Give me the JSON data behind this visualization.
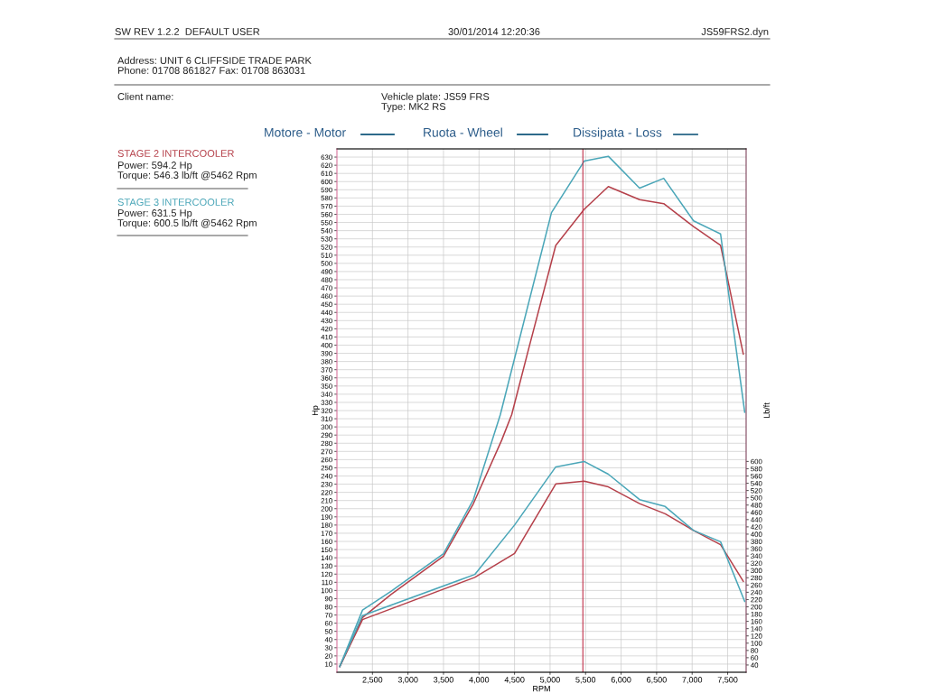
{
  "chart_data": {
    "type": "line",
    "xlabel": "RPM",
    "ylabel": "Hp",
    "y2label": "Lb/ft",
    "xlim": [
      2000,
      7760
    ],
    "ylim": [
      0,
      640
    ],
    "y2lim": [
      20,
      1460
    ],
    "xticks": [
      {
        "value": 2500,
        "label": "2,500"
      },
      {
        "value": 3000,
        "label": "3,000"
      },
      {
        "value": 3500,
        "label": "3,500"
      },
      {
        "value": 4000,
        "label": "4,000"
      },
      {
        "value": 4500,
        "label": "4,500"
      },
      {
        "value": 5000,
        "label": "5,000"
      },
      {
        "value": 5500,
        "label": "5,500"
      },
      {
        "value": 6000,
        "label": "6,000"
      },
      {
        "value": 6500,
        "label": "6,500"
      },
      {
        "value": 7000,
        "label": "7,000"
      },
      {
        "value": 7500,
        "label": "7,500"
      }
    ],
    "yticks": [
      10,
      20,
      30,
      40,
      50,
      60,
      70,
      80,
      90,
      100,
      110,
      120,
      130,
      140,
      150,
      160,
      170,
      180,
      190,
      200,
      210,
      220,
      230,
      240,
      250,
      260,
      270,
      280,
      290,
      300,
      310,
      320,
      330,
      340,
      350,
      360,
      370,
      380,
      390,
      400,
      410,
      420,
      430,
      440,
      450,
      460,
      470,
      480,
      490,
      500,
      510,
      520,
      530,
      540,
      550,
      560,
      570,
      580,
      590,
      600,
      610,
      620,
      630
    ],
    "y2ticks": [
      40,
      60,
      80,
      100,
      120,
      140,
      160,
      180,
      200,
      220,
      240,
      260,
      280,
      300,
      320,
      340,
      360,
      380,
      400,
      420,
      440,
      460,
      480,
      500,
      520,
      540,
      560,
      580,
      600
    ],
    "grid": true,
    "legend": false,
    "series": [
      {
        "color": "#b5404a",
        "x": [
          2040,
          2360,
          2760,
          3500,
          3920,
          4320,
          4460,
          4700,
          5080,
          5480,
          5820,
          6260,
          6600,
          7020,
          7400,
          7720
        ],
        "values": [
          7,
          67,
          95,
          142,
          206,
          284,
          315,
          396,
          522,
          566,
          594,
          578,
          573,
          545,
          522,
          389
        ]
      },
      {
        "color": "#4aa6b8",
        "x": [
          2040,
          2360,
          2760,
          3500,
          3920,
          4300,
          5020,
          5480,
          5820,
          6260,
          6600,
          7020,
          7400,
          7740
        ],
        "values": [
          7,
          76,
          99,
          145,
          211,
          315,
          562,
          625,
          631,
          592,
          604,
          552,
          536,
          318
        ]
      },
      {
        "color": "#b5404a",
        "axis": "y2",
        "x": [
          2040,
          2360,
          3940,
          4500,
          5080,
          5480,
          5820,
          6260,
          6620,
          7020,
          7400,
          7720
        ],
        "values": [
          36,
          165,
          281,
          347,
          538,
          546,
          530,
          484,
          456,
          410,
          371,
          270
        ]
      },
      {
        "color": "#4aa6b8",
        "axis": "y2",
        "x": [
          2040,
          2360,
          3940,
          4500,
          5080,
          5480,
          5820,
          6260,
          6620,
          7020,
          7400,
          7740
        ],
        "values": [
          36,
          176,
          289,
          425,
          585,
          600,
          565,
          495,
          476,
          410,
          379,
          215
        ]
      }
    ],
    "ref_lines": [
      {
        "axis": "x",
        "value": 5462,
        "color": "#c0304a"
      }
    ],
    "annotations": [
      "SW REV 1.2.2  DEFAULT USER",
      "30/01/2014 12:20:36",
      "JS59FRS2.dyn",
      "Address: UNIT 6 CLIFFSIDE TRADE PARK",
      "Phone: 01708 861827 Fax: 01708 863031",
      "Client name:",
      "Vehicle plate: JS59 FRS",
      "Type: MK2 RS",
      "Motore - Motor",
      "Ruota - Wheel",
      "Dissipata - Loss",
      "STAGE 2 INTERCOOLER",
      "Power: 594.2 Hp",
      "Torque: 546.3 lb/ft @5462 Rpm",
      "STAGE 3 INTERCOOLER",
      "Power: 631.5 Hp",
      "Torque: 600.5 lb/ft @5462 Rpm"
    ]
  }
}
